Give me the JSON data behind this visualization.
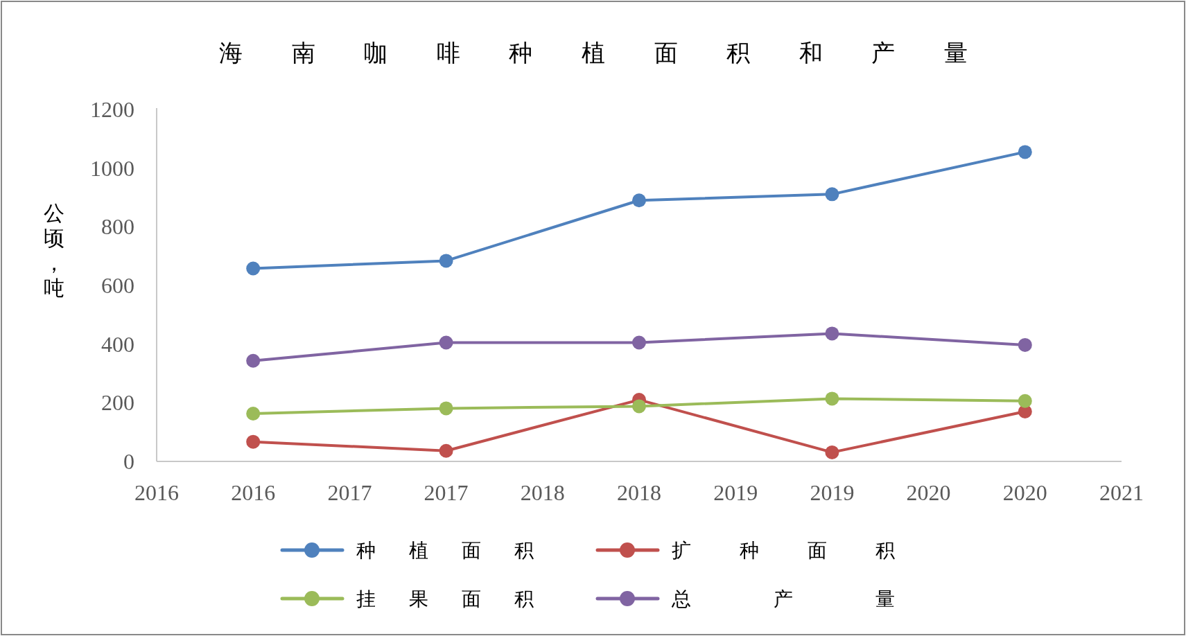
{
  "chart_data": {
    "type": "line",
    "title": "海南咖啡种植面积和产量",
    "ylabel": "公顷，吨",
    "x": [
      2016,
      2017,
      2018,
      2019,
      2020
    ],
    "xlim": [
      2015.5,
      2020.5
    ],
    "xticks": [
      {
        "value": 2015.5,
        "label": "2016"
      },
      {
        "value": 2016,
        "label": "2016"
      },
      {
        "value": 2016.5,
        "label": "2017"
      },
      {
        "value": 2017,
        "label": "2017"
      },
      {
        "value": 2017.5,
        "label": "2018"
      },
      {
        "value": 2018,
        "label": "2018"
      },
      {
        "value": 2018.5,
        "label": "2019"
      },
      {
        "value": 2019,
        "label": "2019"
      },
      {
        "value": 2019.5,
        "label": "2020"
      },
      {
        "value": 2020,
        "label": "2020"
      },
      {
        "value": 2020.5,
        "label": "2021"
      }
    ],
    "ylim": [
      0,
      1200
    ],
    "yticks": [
      0,
      200,
      400,
      600,
      800,
      1000,
      1200
    ],
    "marker": "circle",
    "legend": "bottom",
    "grid": false,
    "series": [
      {
        "name": "种植面积",
        "color": "#4f81bd",
        "values": [
          658,
          684,
          890,
          911,
          1055
        ]
      },
      {
        "name": "扩种面积",
        "color": "#c0504d",
        "values": [
          67,
          36,
          210,
          31,
          170
        ]
      },
      {
        "name": "挂果面积",
        "color": "#9bbb59",
        "values": [
          163,
          181,
          188,
          214,
          206
        ]
      },
      {
        "name": "总产量",
        "color": "#8064a2",
        "values": [
          343,
          405,
          405,
          436,
          397
        ]
      }
    ]
  }
}
